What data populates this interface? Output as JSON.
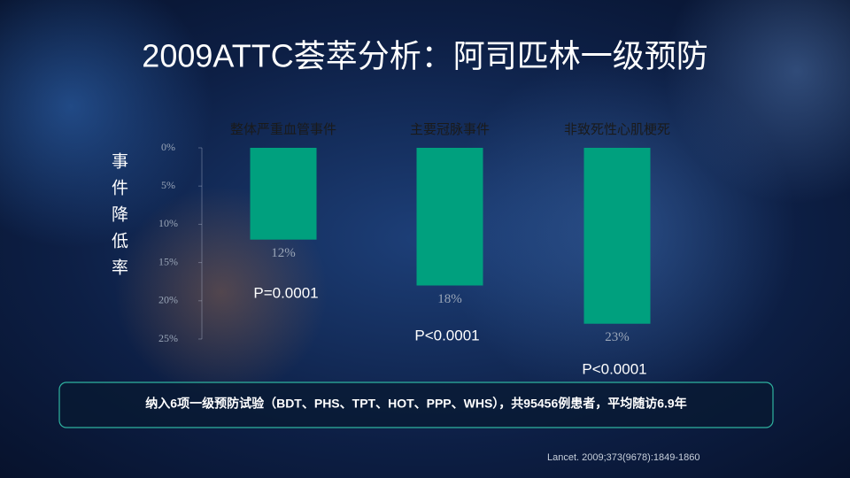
{
  "chart_data": {
    "type": "bar",
    "title": "2009ATTC荟萃分析：阿司匹林一级预防",
    "y_label": "事件降低率",
    "categories": [
      "整体严重血管事件",
      "主要冠脉事件",
      "非致死性心肌梗死"
    ],
    "values": [
      12,
      18,
      23
    ],
    "value_labels": [
      "12%",
      "18%",
      "23%"
    ],
    "color": "#00a07e",
    "ylim": [
      0,
      25
    ],
    "y_inverted": true,
    "yticks": [
      {
        "value": 0,
        "label": "0%"
      },
      {
        "value": 5,
        "label": "5%"
      },
      {
        "value": 10,
        "label": "10%"
      },
      {
        "value": 15,
        "label": "15%"
      },
      {
        "value": 20,
        "label": "20%"
      },
      {
        "value": 25,
        "label": "25%"
      }
    ],
    "annotations": [
      "P=0.0001",
      "P<0.0001",
      "P<0.0001"
    ],
    "note": "纳入6项一级预防试验（BDT、PHS、TPT、HOT、PPP、WHS），共95456例患者，平均随访6.9年",
    "source": "Lancet. 2009;373(9678):1849-1860"
  }
}
